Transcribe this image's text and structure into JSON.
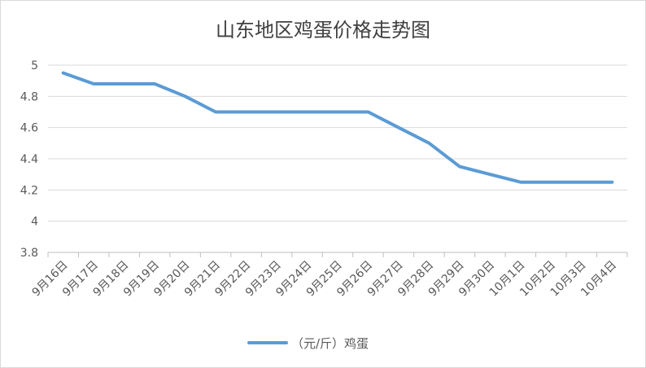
{
  "chart_data": {
    "type": "line",
    "title": "山东地区鸡蛋价格走势图",
    "xlabel": "",
    "ylabel": "",
    "categories": [
      "9月16日",
      "9月17日",
      "9月18日",
      "9月19日",
      "9月20日",
      "9月21日",
      "9月22日",
      "9月23日",
      "9月24日",
      "9月25日",
      "9月26日",
      "9月27日",
      "9月28日",
      "9月29日",
      "9月30日",
      "10月1日",
      "10月2日",
      "10月3日",
      "10月4日"
    ],
    "series": [
      {
        "name": "（元/斤）鸡蛋",
        "color": "#5b9bd5",
        "values": [
          4.95,
          4.88,
          4.88,
          4.88,
          4.8,
          4.7,
          4.7,
          4.7,
          4.7,
          4.7,
          4.7,
          4.6,
          4.5,
          4.35,
          4.3,
          4.25,
          4.25,
          4.25,
          4.25
        ]
      }
    ],
    "ylim": [
      3.8,
      5
    ],
    "yticks": [
      "3.8",
      "4",
      "4.2",
      "4.4",
      "4.6",
      "4.8",
      "5"
    ],
    "grid": true,
    "legend": "bottom"
  }
}
